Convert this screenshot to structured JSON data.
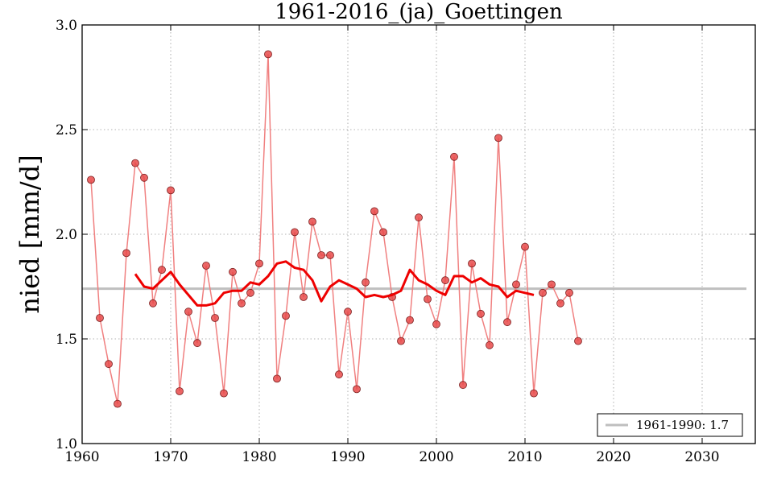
{
  "chart_data": {
    "type": "line",
    "title": "1961-2016_(ja)_Goettingen",
    "ylabel": "nied [mm/d]",
    "xlabel": "",
    "xlim": [
      1960,
      2036
    ],
    "ylim": [
      1.0,
      3.0
    ],
    "xticks": [
      1960,
      1970,
      1980,
      1990,
      2000,
      2010,
      2020,
      2030
    ],
    "yticks": [
      1.0,
      1.5,
      2.0,
      2.5,
      3.0
    ],
    "xtick_labels": [
      "1960",
      "1970",
      "1980",
      "1990",
      "2000",
      "2010",
      "2020",
      "2030"
    ],
    "ytick_labels": [
      "1.0",
      "1.5",
      "2.0",
      "2.5",
      "3.0"
    ],
    "grid": true,
    "legend_position": "bottom-right",
    "colors": {
      "annual": "#f08080",
      "marker_fill": "#e84a4a",
      "smooth": "#ee0000",
      "reference": "#bfbfbf"
    },
    "reference": {
      "label": "1961-1990: 1.7",
      "value": 1.74,
      "x_range": [
        1960,
        2035
      ]
    },
    "annual": {
      "x": [
        1961,
        1962,
        1963,
        1964,
        1965,
        1966,
        1967,
        1968,
        1969,
        1970,
        1971,
        1972,
        1973,
        1974,
        1975,
        1976,
        1977,
        1978,
        1979,
        1980,
        1981,
        1982,
        1983,
        1984,
        1985,
        1986,
        1987,
        1988,
        1989,
        1990,
        1991,
        1992,
        1993,
        1994,
        1995,
        1996,
        1997,
        1998,
        1999,
        2000,
        2001,
        2002,
        2003,
        2004,
        2005,
        2006,
        2007,
        2008,
        2009,
        2010,
        2011,
        2012,
        2013,
        2014,
        2015,
        2016
      ],
      "y": [
        2.26,
        1.6,
        1.38,
        1.19,
        1.91,
        2.34,
        2.27,
        1.67,
        1.83,
        2.21,
        1.25,
        1.63,
        1.48,
        1.85,
        1.6,
        1.24,
        1.82,
        1.67,
        1.72,
        1.86,
        2.86,
        1.31,
        1.61,
        2.01,
        1.7,
        2.06,
        1.9,
        1.9,
        1.33,
        1.63,
        1.26,
        1.77,
        2.11,
        2.01,
        1.7,
        1.49,
        1.59,
        2.08,
        1.69,
        1.57,
        1.78,
        2.37,
        1.28,
        1.86,
        1.62,
        1.47,
        2.46,
        1.58,
        1.76,
        1.94,
        1.24,
        1.72,
        1.76,
        1.67,
        1.72,
        1.49
      ]
    },
    "smoothed": {
      "x": [
        1966,
        1967,
        1968,
        1969,
        1970,
        1971,
        1972,
        1973,
        1974,
        1975,
        1976,
        1977,
        1978,
        1979,
        1980,
        1981,
        1982,
        1983,
        1984,
        1985,
        1986,
        1987,
        1988,
        1989,
        1990,
        1991,
        1992,
        1993,
        1994,
        1995,
        1996,
        1997,
        1998,
        1999,
        2000,
        2001,
        2002,
        2003,
        2004,
        2005,
        2006,
        2007,
        2008,
        2009,
        2010,
        2011
      ],
      "y": [
        1.81,
        1.75,
        1.74,
        1.78,
        1.82,
        1.76,
        1.71,
        1.66,
        1.66,
        1.67,
        1.72,
        1.73,
        1.73,
        1.77,
        1.76,
        1.8,
        1.86,
        1.87,
        1.84,
        1.83,
        1.78,
        1.68,
        1.75,
        1.78,
        1.76,
        1.74,
        1.7,
        1.71,
        1.7,
        1.71,
        1.73,
        1.83,
        1.78,
        1.76,
        1.73,
        1.71,
        1.8,
        1.8,
        1.77,
        1.79,
        1.76,
        1.75,
        1.7,
        1.73,
        1.72,
        1.71
      ]
    }
  }
}
